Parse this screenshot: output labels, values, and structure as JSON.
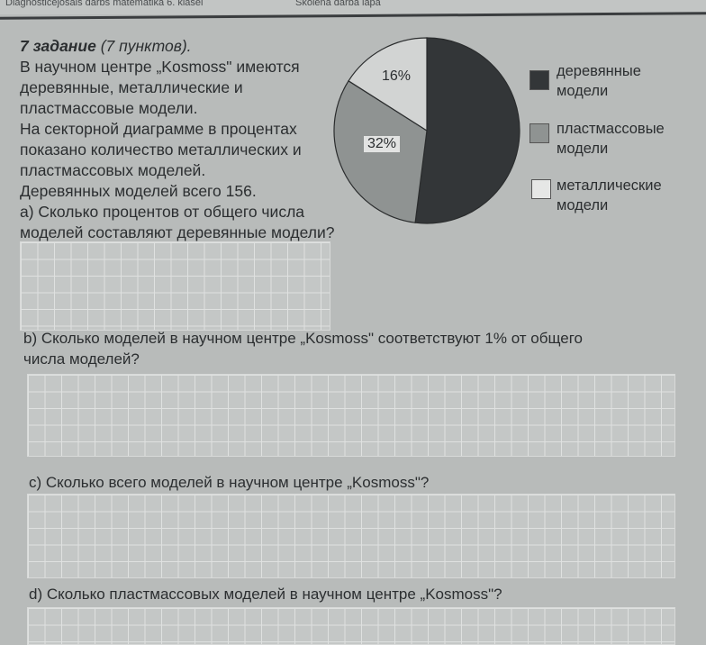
{
  "header": {
    "left": "Diagnosticējošais darbs matemātikā 6. klasei",
    "middle": "Skolēna darba lapa"
  },
  "task": {
    "title_bold": "7 задание",
    "title_points": "(7 пунктов).",
    "lines": [
      "В научном центре „Kosmoss\" имеются",
      "деревянные, металлические и",
      "пластмассовые модели.",
      "На секторной диаграмме в процентах",
      "показано количество металлических и",
      "пластмассовых моделей.",
      "Деревянных моделей всего 156."
    ],
    "qa": [
      "а) Сколько процентов от общего числа",
      "моделей составляют деревянные модели?"
    ]
  },
  "questions": {
    "b1": "b) Сколько моделей в научном центре „Kosmoss\"  соответствуют 1% от общего",
    "b2": "числа моделей?",
    "c": "c) Сколько всего моделей в научном центре „Kosmoss\"?",
    "d": "d) Сколько пластмассовых моделей в научном центре „Kosmoss\"?"
  },
  "chart_data": {
    "type": "pie",
    "slices": [
      {
        "name": "деревянные модели",
        "value": 52,
        "label": "",
        "color": "#333638"
      },
      {
        "name": "пластмассовые модели",
        "value": 32,
        "label": "32%",
        "color": "#8f9392"
      },
      {
        "name": "металлические модели",
        "value": 16,
        "label": "16%",
        "color": "#d2d4d3"
      }
    ],
    "legend": [
      {
        "line1": "деревянные",
        "line2": "модели",
        "color": "#333638"
      },
      {
        "line1": "пластмассовые",
        "line2": "модели",
        "color": "#8f9392"
      },
      {
        "line1": "металлические",
        "line2": "модели",
        "color": "#e6e7e6"
      }
    ],
    "legend_position": "right"
  }
}
